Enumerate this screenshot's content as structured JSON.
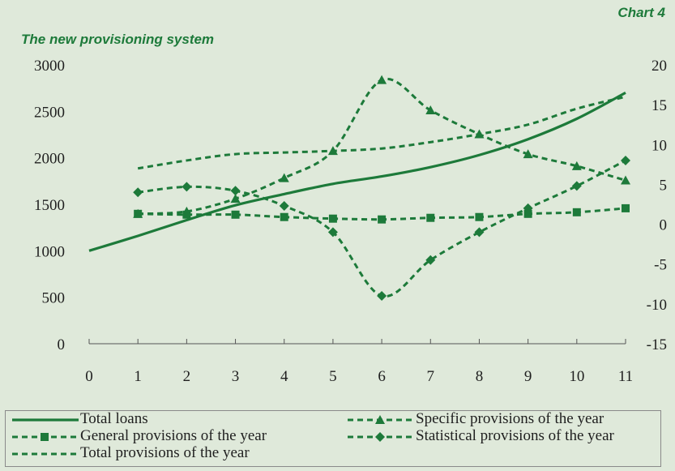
{
  "header": {
    "chart_number": "Chart 4",
    "title": "The new provisioning system"
  },
  "colors": {
    "background": "#dfe9da",
    "series": "#1d7a3a",
    "text": "#1f1f1f"
  },
  "chart_data": {
    "type": "line",
    "title": "The new provisioning system",
    "x_axis": {
      "ticks": [
        0,
        1,
        2,
        3,
        4,
        5,
        6,
        7,
        8,
        9,
        10,
        11
      ],
      "range": [
        0,
        11
      ]
    },
    "y_left": {
      "ticks": [
        0,
        500,
        1000,
        1500,
        2000,
        2500,
        3000
      ],
      "range": [
        0,
        3000
      ]
    },
    "y_right": {
      "ticks": [
        -15,
        -10,
        -5,
        0,
        5,
        10,
        15,
        20
      ],
      "range": [
        -15,
        20
      ]
    },
    "grid": false,
    "legend_position": "bottom",
    "series": [
      {
        "name": "Total loans",
        "axis": "left",
        "style": "solid",
        "marker": "none",
        "x": [
          0,
          1,
          2,
          3,
          4,
          5,
          6,
          7,
          8,
          9,
          10,
          11
        ],
        "values": [
          1000,
          1160,
          1330,
          1490,
          1610,
          1720,
          1800,
          1900,
          2030,
          2200,
          2420,
          2700
        ]
      },
      {
        "name": "Specific provisions of the year",
        "axis": "right",
        "style": "dashed",
        "marker": "triangle",
        "x": [
          1,
          2,
          3,
          4,
          5,
          6,
          7,
          8,
          9,
          10,
          11
        ],
        "values": [
          1.3,
          1.6,
          3.2,
          5.8,
          9.2,
          18.1,
          14.3,
          11.3,
          8.8,
          7.3,
          5.5
        ]
      },
      {
        "name": "General provisions of the year",
        "axis": "right",
        "style": "dashed",
        "marker": "square",
        "x": [
          1,
          2,
          3,
          4,
          5,
          6,
          7,
          8,
          9,
          10,
          11
        ],
        "values": [
          1.3,
          1.2,
          1.2,
          0.9,
          0.7,
          0.6,
          0.8,
          0.9,
          1.3,
          1.5,
          2.0
        ]
      },
      {
        "name": "Statistical provisions of the year",
        "axis": "right",
        "style": "dashed",
        "marker": "diamond",
        "x": [
          1,
          2,
          3,
          4,
          5,
          6,
          7,
          8,
          9,
          10,
          11
        ],
        "values": [
          4.0,
          4.7,
          4.2,
          2.3,
          -1.0,
          -9.0,
          -4.5,
          -1.0,
          2.0,
          4.8,
          8.0
        ]
      },
      {
        "name": "Total provisions of the year",
        "axis": "right",
        "style": "dashed",
        "marker": "none",
        "x": [
          1,
          2,
          3,
          4,
          5,
          6,
          7,
          8,
          9,
          10,
          11
        ],
        "values": [
          7.0,
          8.0,
          8.8,
          9.0,
          9.2,
          9.5,
          10.3,
          11.3,
          12.5,
          14.5,
          16.0
        ]
      }
    ]
  }
}
